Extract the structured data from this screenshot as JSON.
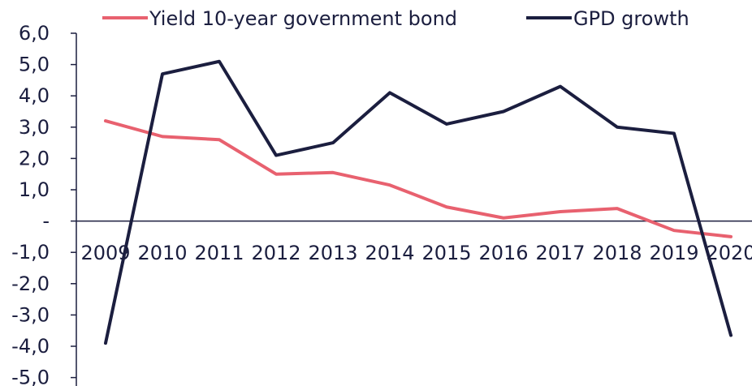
{
  "colors": {
    "bond": "#e8616f",
    "gdp": "#1b1e3f",
    "axis": "#1b1e3f",
    "text": "#1b1e3f"
  },
  "chart_data": {
    "type": "line",
    "title": "",
    "xlabel": "",
    "ylabel": "",
    "categories": [
      "2009",
      "2010",
      "2011",
      "2012",
      "2013",
      "2014",
      "2015",
      "2016",
      "2017",
      "2018",
      "2019",
      "2020"
    ],
    "ylim": [
      -5,
      6
    ],
    "yticks": [
      6,
      5,
      4,
      3,
      2,
      1,
      0,
      -1,
      -2,
      -3,
      -4,
      -5
    ],
    "ytick_labels": [
      "6,0",
      "5,0",
      "4,0",
      "3,0",
      "2,0",
      "1,0",
      "-",
      "-1,0",
      "-2,0",
      "-3,0",
      "-4,0",
      "-5,0"
    ],
    "legend_position": "top",
    "grid": false,
    "series": [
      {
        "name": "Yield 10-year government bond",
        "color": "#e8616f",
        "values": [
          3.2,
          2.7,
          2.6,
          1.5,
          1.55,
          1.15,
          0.45,
          0.1,
          0.3,
          0.4,
          -0.3,
          -0.5
        ]
      },
      {
        "name": "GPD growth",
        "color": "#1b1e3f",
        "values": [
          -3.9,
          4.7,
          5.1,
          2.1,
          2.5,
          4.1,
          3.1,
          3.5,
          4.3,
          3.0,
          2.8,
          -3.65
        ]
      }
    ]
  }
}
